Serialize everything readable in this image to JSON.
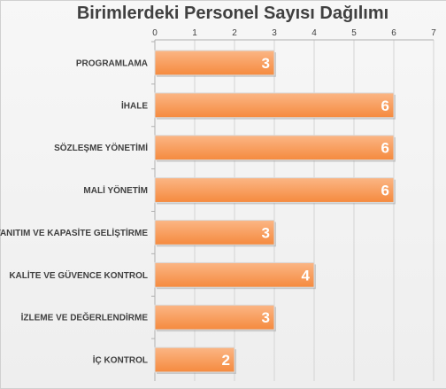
{
  "chart_data": {
    "type": "bar",
    "orientation": "horizontal",
    "title": "Birimlerdeki Personel Sayısı Dağılımı",
    "categories": [
      "PROGRAMLAMA",
      "İHALE",
      "SÖZLEŞME YÖNETİMİ",
      "MALİ YÖNETİM",
      "TANITIM VE KAPASİTE GELİŞTİRME",
      "KALİTE VE GÜVENCE KONTROL",
      "İZLEME VE DEĞERLENDİRME",
      "İÇ KONTROL"
    ],
    "values": [
      3,
      6,
      6,
      6,
      3,
      4,
      3,
      2
    ],
    "xlim": [
      0,
      7
    ],
    "xticks": [
      "0",
      "1",
      "2",
      "3",
      "4",
      "5",
      "6",
      "7"
    ],
    "axis_position": "top",
    "grid": true,
    "data_labels": true,
    "bar_color": "#f79646",
    "bar_edge_color": "#d9d9d9"
  }
}
